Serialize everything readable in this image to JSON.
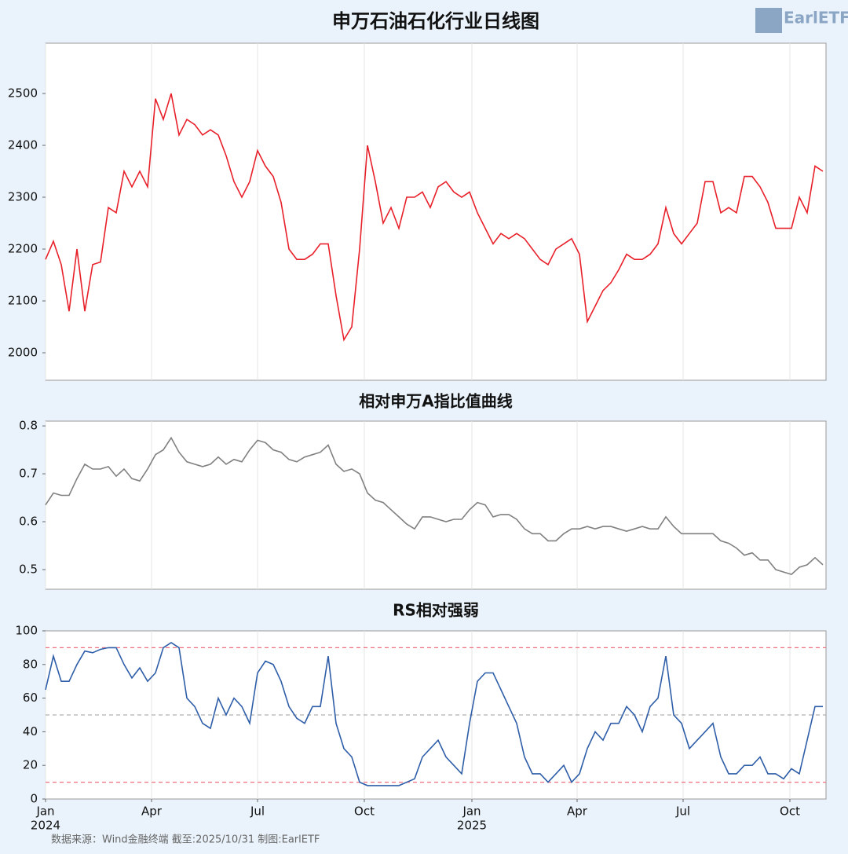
{
  "chart_data": [
    {
      "type": "line",
      "title": "申万石油石化行业日线图",
      "color": "#e8202a",
      "values": [
        2180,
        2215,
        2170,
        2080,
        2200,
        2080,
        2170,
        2175,
        2280,
        2270,
        2350,
        2320,
        2350,
        2320,
        2490,
        2450,
        2500,
        2420,
        2450,
        2440,
        2420,
        2430,
        2420,
        2380,
        2330,
        2300,
        2330,
        2390,
        2360,
        2340,
        2290,
        2200,
        2180,
        2180,
        2190,
        2210,
        2210,
        2110,
        2025,
        2050,
        2200,
        2400,
        2330,
        2250,
        2280,
        2240,
        2300,
        2300,
        2310,
        2280,
        2320,
        2330,
        2310,
        2300,
        2310,
        2270,
        2240,
        2210,
        2230,
        2220,
        2230,
        2220,
        2200,
        2180,
        2170,
        2200,
        2210,
        2220,
        2190,
        2060,
        2090,
        2120,
        2135,
        2160,
        2190,
        2180,
        2180,
        2190,
        2210,
        2280,
        2230,
        2210,
        2230,
        2250,
        2330,
        2330,
        2270,
        2280,
        2270,
        2340,
        2340,
        2320,
        2290,
        2240,
        2240,
        2240,
        2300,
        2270,
        2360,
        2350
      ],
      "xlim": [
        0,
        99.4
      ],
      "ylim": [
        1947,
        2597
      ],
      "yticks": [
        2000,
        2100,
        2200,
        2300,
        2400,
        2500
      ]
    },
    {
      "type": "line",
      "title": "相对申万A指比值曲线",
      "color": "#808080",
      "values": [
        0.635,
        0.66,
        0.655,
        0.655,
        0.69,
        0.72,
        0.71,
        0.71,
        0.715,
        0.695,
        0.71,
        0.69,
        0.685,
        0.71,
        0.74,
        0.75,
        0.775,
        0.745,
        0.725,
        0.72,
        0.715,
        0.72,
        0.735,
        0.72,
        0.73,
        0.725,
        0.75,
        0.77,
        0.765,
        0.75,
        0.745,
        0.73,
        0.725,
        0.735,
        0.74,
        0.745,
        0.76,
        0.72,
        0.705,
        0.71,
        0.7,
        0.66,
        0.645,
        0.64,
        0.625,
        0.61,
        0.595,
        0.585,
        0.61,
        0.61,
        0.605,
        0.6,
        0.605,
        0.605,
        0.625,
        0.64,
        0.635,
        0.61,
        0.615,
        0.615,
        0.605,
        0.585,
        0.575,
        0.575,
        0.56,
        0.56,
        0.575,
        0.585,
        0.585,
        0.59,
        0.585,
        0.59,
        0.59,
        0.585,
        0.58,
        0.585,
        0.59,
        0.585,
        0.585,
        0.61,
        0.59,
        0.575,
        0.575,
        0.575,
        0.575,
        0.575,
        0.56,
        0.555,
        0.545,
        0.53,
        0.535,
        0.52,
        0.52,
        0.5,
        0.495,
        0.49,
        0.505,
        0.51,
        0.525,
        0.51
      ],
      "xlim": [
        0,
        99.4
      ],
      "ylim": [
        0.459,
        0.81
      ],
      "yticks": [
        {
          "value": 0.5,
          "label": "0.5"
        },
        {
          "value": 0.6,
          "label": "0.6"
        },
        {
          "value": 0.7,
          "label": "0.7"
        },
        {
          "value": 0.8,
          "label": "0.8"
        }
      ]
    },
    {
      "type": "line",
      "title": "RS相对强弱",
      "color": "#2f5ea8",
      "values": [
        65,
        85,
        70,
        70,
        80,
        88,
        87,
        89,
        90,
        90,
        80,
        72,
        78,
        70,
        75,
        90,
        93,
        90,
        60,
        55,
        45,
        42,
        60,
        50,
        60,
        55,
        45,
        75,
        82,
        80,
        70,
        55,
        48,
        45,
        55,
        55,
        85,
        45,
        30,
        25,
        10,
        8,
        8,
        8,
        8,
        8,
        10,
        12,
        25,
        30,
        35,
        25,
        20,
        15,
        45,
        70,
        75,
        75,
        65,
        55,
        45,
        25,
        15,
        15,
        10,
        15,
        20,
        10,
        15,
        30,
        40,
        35,
        45,
        45,
        55,
        50,
        40,
        55,
        60,
        85,
        50,
        45,
        30,
        35,
        40,
        45,
        25,
        15,
        15,
        20,
        20,
        25,
        15,
        15,
        12,
        18,
        15,
        35,
        55,
        55
      ],
      "xlim": [
        0,
        99.4
      ],
      "ylim": [
        0,
        100
      ],
      "yticks": [
        0,
        20,
        40,
        60,
        80,
        100
      ],
      "hlines": [
        {
          "value": 90,
          "color": "#f07080"
        },
        {
          "value": 50,
          "color": "#b0b0b0"
        },
        {
          "value": 10,
          "color": "#f07080"
        }
      ],
      "xticks": [
        {
          "value": 0,
          "label": "Jan",
          "year": "2024"
        },
        {
          "value": 13.5,
          "label": "Apr"
        },
        {
          "value": 27,
          "label": "Jul"
        },
        {
          "value": 40.6,
          "label": "Oct"
        },
        {
          "value": 54.3,
          "label": "Jan",
          "year": "2025"
        },
        {
          "value": 67.7,
          "label": "Apr"
        },
        {
          "value": 81.2,
          "label": "Jul"
        },
        {
          "value": 94.8,
          "label": "Oct"
        }
      ]
    }
  ],
  "logo": "EarlETF",
  "source": "数据来源：Wind金融终端 截至:2025/10/31 制图:EarlETF"
}
